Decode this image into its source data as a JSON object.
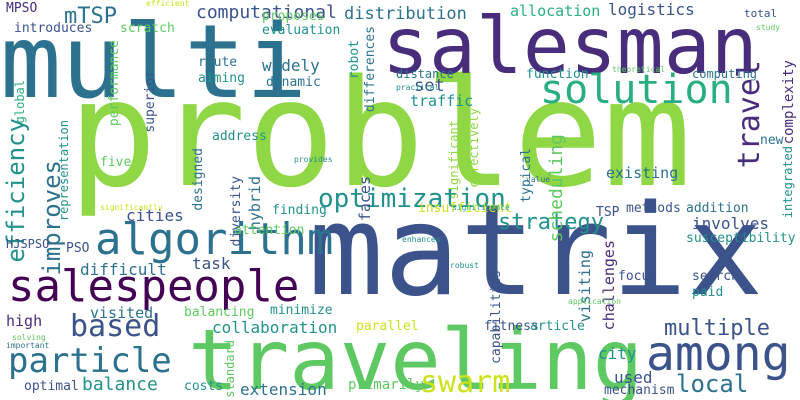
{
  "colors": {
    "background": "#ffffff",
    "purple": "#440154",
    "indigo": "#472d7b",
    "blue": "#3b528b",
    "steel": "#2c728e",
    "teal": "#21918c",
    "green": "#28ae80",
    "mint": "#5ec962",
    "lime": "#addc30",
    "yellow": "#fde725"
  },
  "words": [
    "problem",
    "matrix",
    "multi",
    "salesman",
    "traveling",
    "salespeople",
    "algorithm",
    "among",
    "solution",
    "swarm",
    "particle",
    "optimization",
    "based",
    "travel",
    "efficiency",
    "improves",
    "multiple",
    "strategy",
    "local",
    "balance",
    "mTSP",
    "MPSO",
    "computational",
    "distribution",
    "allocation",
    "logistics",
    "introduces",
    "scratch",
    "proposes",
    "evaluation",
    "robot",
    "differences",
    "total",
    "result",
    "study",
    "performance",
    "aiming",
    "widely",
    "route",
    "dynamic",
    "set",
    "distance",
    "function",
    "computing",
    "complexity",
    "global",
    "superior",
    "practical",
    "theoretical",
    "traffic",
    "scheduling",
    "address",
    "new",
    "five",
    "designed",
    "hybrid",
    "faces",
    "significant",
    "effectively",
    "typical",
    "existing",
    "value",
    "integrated",
    "provides",
    "representation",
    "diversity",
    "cities",
    "insufficient",
    "methods",
    "addition",
    "significantly",
    "significance",
    "TSP",
    "involves",
    "susceptibility",
    "finding",
    "PSO",
    "difficult",
    "task",
    "enhances",
    "visiting",
    "capabilities",
    "challenges",
    "search",
    "focus",
    "paid",
    "HJSPSO",
    "attention",
    "robust",
    "application",
    "high",
    "visited",
    "balancing",
    "minimize",
    "collaboration",
    "parallel",
    "fitness",
    "article",
    "city",
    "solving",
    "important",
    "standard",
    "used",
    "optimal",
    "costs",
    "extension",
    "primarily",
    "mechanism",
    "efficient"
  ]
}
